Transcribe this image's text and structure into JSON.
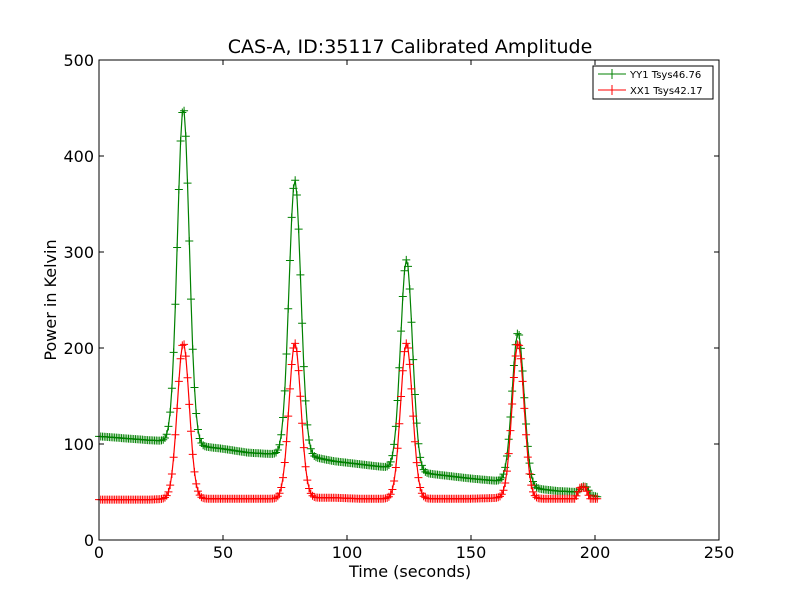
{
  "chart_data": {
    "type": "line",
    "title": "CAS-A, ID:35117 Calibrated Amplitude",
    "xlabel": "Time (seconds)",
    "ylabel": "Power in Kelvin",
    "xlim": [
      0,
      250
    ],
    "ylim": [
      0,
      500
    ],
    "xticks": [
      "0",
      "50",
      "100",
      "150",
      "200",
      "250"
    ],
    "yticks": [
      "0",
      "100",
      "200",
      "300",
      "400",
      "500"
    ],
    "grid": false,
    "legend_position": "top-right",
    "marker": "+",
    "series": [
      {
        "name": "YY1 Tsys46.76",
        "color": "#008000",
        "peaks": [
          {
            "x": 34,
            "y": 450
          },
          {
            "x": 79,
            "y": 375
          },
          {
            "x": 124,
            "y": 292
          },
          {
            "x": 169,
            "y": 216
          }
        ],
        "baseline": [
          {
            "x": 0,
            "y": 108
          },
          {
            "x": 10,
            "y": 106
          },
          {
            "x": 20,
            "y": 104
          },
          {
            "x": 28,
            "y": 103
          },
          {
            "x": 40,
            "y": 98
          },
          {
            "x": 50,
            "y": 95
          },
          {
            "x": 60,
            "y": 91
          },
          {
            "x": 73,
            "y": 89
          },
          {
            "x": 85,
            "y": 87
          },
          {
            "x": 95,
            "y": 82
          },
          {
            "x": 105,
            "y": 79
          },
          {
            "x": 118,
            "y": 75
          },
          {
            "x": 130,
            "y": 70
          },
          {
            "x": 140,
            "y": 67
          },
          {
            "x": 150,
            "y": 64
          },
          {
            "x": 163,
            "y": 61
          },
          {
            "x": 175,
            "y": 54
          },
          {
            "x": 185,
            "y": 51
          },
          {
            "x": 193,
            "y": 50
          },
          {
            "x": 195,
            "y": 56
          },
          {
            "x": 197,
            "y": 55
          },
          {
            "x": 198,
            "y": 47
          },
          {
            "x": 201,
            "y": 45
          }
        ]
      },
      {
        "name": "XX1 Tsys42.17",
        "color": "#ff0000",
        "peaks": [
          {
            "x": 34,
            "y": 205
          },
          {
            "x": 79,
            "y": 205
          },
          {
            "x": 124,
            "y": 205
          },
          {
            "x": 169,
            "y": 205
          }
        ],
        "baseline": [
          {
            "x": 0,
            "y": 42
          },
          {
            "x": 10,
            "y": 42
          },
          {
            "x": 20,
            "y": 42
          },
          {
            "x": 28,
            "y": 43
          },
          {
            "x": 40,
            "y": 43
          },
          {
            "x": 50,
            "y": 43
          },
          {
            "x": 60,
            "y": 43
          },
          {
            "x": 73,
            "y": 43
          },
          {
            "x": 85,
            "y": 44
          },
          {
            "x": 95,
            "y": 44
          },
          {
            "x": 105,
            "y": 43
          },
          {
            "x": 118,
            "y": 43
          },
          {
            "x": 130,
            "y": 43
          },
          {
            "x": 140,
            "y": 43
          },
          {
            "x": 150,
            "y": 43
          },
          {
            "x": 163,
            "y": 44
          },
          {
            "x": 175,
            "y": 43
          },
          {
            "x": 185,
            "y": 43
          },
          {
            "x": 192,
            "y": 43
          },
          {
            "x": 194,
            "y": 55
          },
          {
            "x": 196,
            "y": 55
          },
          {
            "x": 198,
            "y": 43
          },
          {
            "x": 201,
            "y": 43
          }
        ]
      }
    ]
  }
}
